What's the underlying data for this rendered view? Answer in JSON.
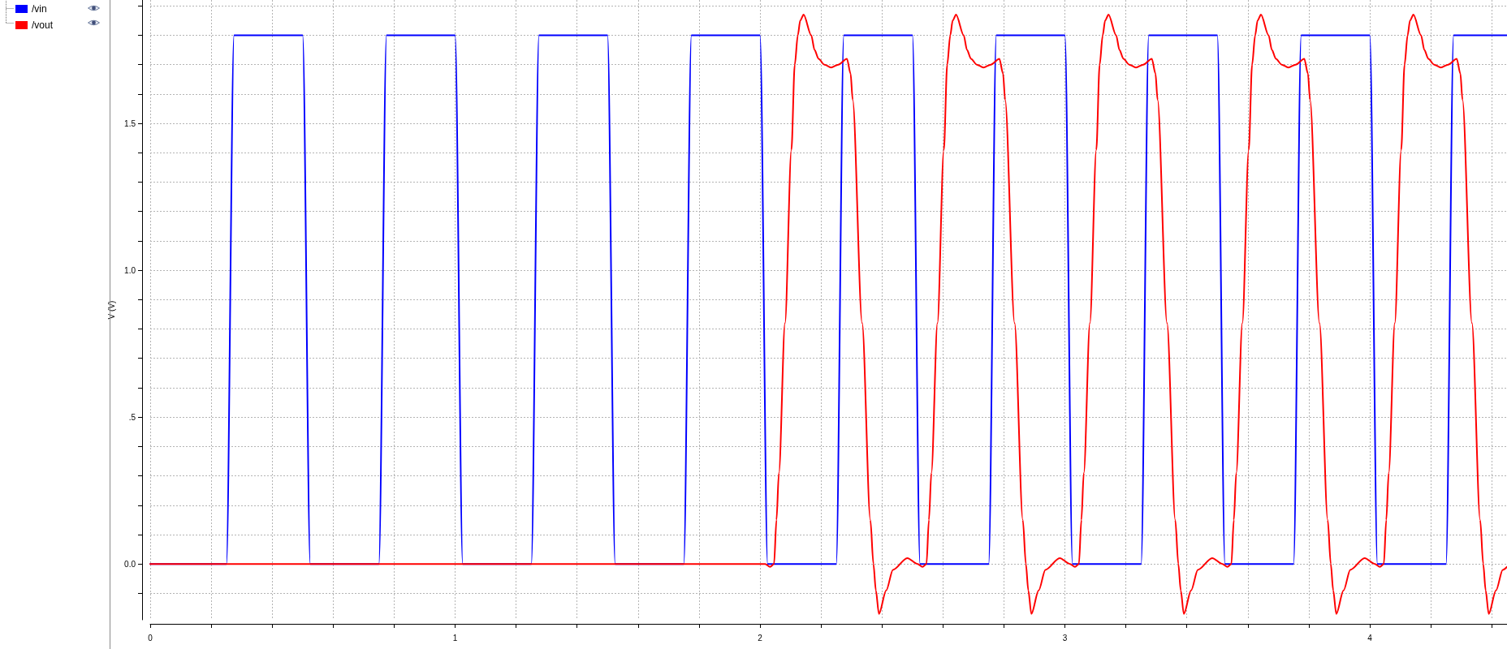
{
  "chart_data": {
    "type": "line",
    "ylabel": "V (V)",
    "series": [
      {
        "name": "/vin",
        "color": "#0000ff",
        "x": [
          0,
          0.25,
          0.275,
          0.5,
          0.525,
          0.75,
          0.775,
          1.0,
          1.025,
          1.25,
          1.275,
          1.5,
          1.525,
          1.75,
          1.775,
          2.0,
          2.025,
          2.25,
          2.275,
          2.5,
          2.525,
          2.75,
          2.775,
          3.0,
          3.025,
          3.25,
          3.275,
          3.5,
          3.525,
          3.75,
          3.775,
          4.0,
          4.025,
          4.25,
          4.275,
          4.45
        ],
        "values": [
          0,
          0,
          1.8,
          1.8,
          0,
          0,
          1.8,
          1.8,
          0,
          0,
          1.8,
          1.8,
          0,
          0,
          1.8,
          1.8,
          0,
          0,
          1.8,
          1.8,
          0,
          0,
          1.8,
          1.8,
          0,
          0,
          1.8,
          1.8,
          0,
          0,
          1.8,
          1.8,
          0,
          0,
          1.8,
          1.8
        ]
      },
      {
        "name": "/vout",
        "color": "#ff0000",
        "x": [
          0,
          2.0,
          2.017,
          2.033,
          2.046,
          2.054,
          2.062,
          2.082,
          2.103,
          2.114,
          2.124,
          2.132,
          2.143,
          2.168,
          2.179,
          2.192,
          2.211,
          2.233,
          2.257,
          2.285,
          2.297,
          2.304,
          2.335,
          2.362,
          2.372,
          2.38,
          2.39,
          2.414,
          2.436,
          2.483,
          2.517,
          2.533,
          2.546,
          2.554,
          2.562,
          2.582,
          2.603,
          2.614,
          2.624,
          2.632,
          2.643,
          2.668,
          2.679,
          2.692,
          2.711,
          2.733,
          2.757,
          2.785,
          2.797,
          2.804,
          2.835,
          2.862,
          2.872,
          2.88,
          2.89,
          2.914,
          2.936,
          2.983,
          3.017,
          3.033,
          3.046,
          3.054,
          3.062,
          3.082,
          3.103,
          3.114,
          3.124,
          3.132,
          3.143,
          3.168,
          3.179,
          3.192,
          3.211,
          3.233,
          3.257,
          3.285,
          3.297,
          3.304,
          3.335,
          3.362,
          3.372,
          3.38,
          3.39,
          3.414,
          3.436,
          3.483,
          3.517,
          3.533,
          3.546,
          3.554,
          3.562,
          3.582,
          3.603,
          3.614,
          3.624,
          3.632,
          3.643,
          3.668,
          3.679,
          3.692,
          3.711,
          3.733,
          3.757,
          3.785,
          3.797,
          3.804,
          3.835,
          3.862,
          3.872,
          3.88,
          3.89,
          3.914,
          3.936,
          3.983,
          4.017,
          4.033,
          4.046,
          4.054,
          4.062,
          4.082,
          4.103,
          4.114,
          4.124,
          4.132,
          4.143,
          4.168,
          4.179,
          4.192,
          4.211,
          4.233,
          4.257,
          4.285,
          4.297,
          4.304,
          4.335,
          4.362,
          4.372,
          4.38,
          4.39,
          4.414,
          4.436,
          4.45
        ],
        "values": [
          0,
          0,
          0,
          -0.01,
          0,
          0.15,
          0.31,
          0.82,
          1.41,
          1.7,
          1.8,
          1.85,
          1.87,
          1.8,
          1.75,
          1.72,
          1.7,
          1.69,
          1.7,
          1.72,
          1.67,
          1.58,
          0.82,
          0.15,
          0,
          -0.09,
          -0.17,
          -0.09,
          -0.02,
          0.02,
          0,
          -0.01,
          0,
          0.15,
          0.31,
          0.82,
          1.41,
          1.7,
          1.8,
          1.85,
          1.87,
          1.8,
          1.75,
          1.72,
          1.7,
          1.69,
          1.7,
          1.72,
          1.67,
          1.58,
          0.82,
          0.15,
          0,
          -0.09,
          -0.17,
          -0.09,
          -0.02,
          0.02,
          0,
          -0.01,
          0,
          0.15,
          0.31,
          0.82,
          1.41,
          1.7,
          1.8,
          1.85,
          1.87,
          1.8,
          1.75,
          1.72,
          1.7,
          1.69,
          1.7,
          1.72,
          1.67,
          1.58,
          0.82,
          0.15,
          0,
          -0.09,
          -0.17,
          -0.09,
          -0.02,
          0.02,
          0,
          -0.01,
          0,
          0.15,
          0.31,
          0.82,
          1.41,
          1.7,
          1.8,
          1.85,
          1.87,
          1.8,
          1.75,
          1.72,
          1.7,
          1.69,
          1.7,
          1.72,
          1.67,
          1.58,
          0.82,
          0.15,
          0,
          -0.09,
          -0.17,
          -0.09,
          -0.02,
          0.02,
          0,
          -0.01,
          0,
          0.15,
          0.31,
          0.82,
          1.41,
          1.7,
          1.8,
          1.85,
          1.87,
          1.8,
          1.75,
          1.72,
          1.7,
          1.69,
          1.7,
          1.72,
          1.67,
          1.58,
          0.82,
          0.15,
          0,
          -0.09,
          -0.17,
          -0.09,
          -0.02,
          -0.01
        ]
      }
    ],
    "xlim": [
      0,
      4.45
    ],
    "xticks": [
      0,
      {
        "value": 0.2,
        "label": null
      },
      {
        "value": 0.4,
        "label": null
      },
      {
        "value": 0.6,
        "label": null
      },
      {
        "value": 0.8,
        "label": null
      },
      1,
      {
        "value": 1.2,
        "label": null
      },
      {
        "value": 1.4,
        "label": null
      },
      {
        "value": 1.6,
        "label": null
      },
      {
        "value": 1.8,
        "label": null
      },
      2,
      {
        "value": 2.2,
        "label": null
      },
      {
        "value": 2.4,
        "label": null
      },
      {
        "value": 2.6,
        "label": null
      },
      {
        "value": 2.8,
        "label": null
      },
      3,
      {
        "value": 3.2,
        "label": null
      },
      {
        "value": 3.4,
        "label": null
      },
      {
        "value": 3.6,
        "label": null
      },
      {
        "value": 3.8,
        "label": null
      },
      4,
      {
        "value": 4.2,
        "label": null
      },
      {
        "value": 4.4,
        "label": null
      }
    ],
    "ylim": [
      -0.19,
      1.92
    ],
    "yticks": [
      {
        "value": -0.1,
        "label": null
      },
      {
        "value": 0,
        "label": "0.0"
      },
      {
        "value": 0.1,
        "label": null
      },
      {
        "value": 0.2,
        "label": null
      },
      {
        "value": 0.3,
        "label": null
      },
      {
        "value": 0.4,
        "label": null
      },
      {
        "value": 0.5,
        "label": ".5"
      },
      {
        "value": 0.6,
        "label": null
      },
      {
        "value": 0.7,
        "label": null
      },
      {
        "value": 0.8,
        "label": null
      },
      {
        "value": 0.9,
        "label": null
      },
      {
        "value": 1,
        "label": "1.0"
      },
      {
        "value": 1.1,
        "label": null
      },
      {
        "value": 1.2,
        "label": null
      },
      {
        "value": 1.3,
        "label": null
      },
      {
        "value": 1.4,
        "label": null
      },
      {
        "value": 1.5,
        "label": "1.5"
      },
      {
        "value": 1.6,
        "label": null
      },
      {
        "value": 1.7,
        "label": null
      },
      {
        "value": 1.8,
        "label": null
      },
      {
        "value": 1.9,
        "label": null
      }
    ],
    "grid": true,
    "legend": "top left"
  }
}
